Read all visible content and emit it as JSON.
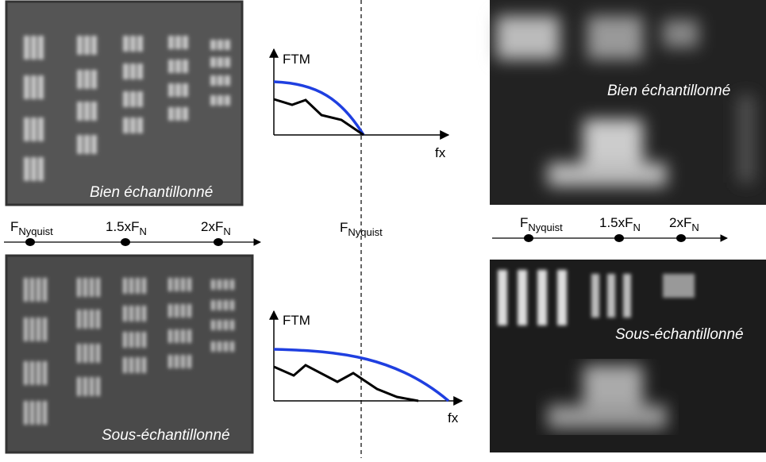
{
  "panels": {
    "top_left": "Bien échantillonné",
    "bottom_left": "Sous-échantillonné",
    "top_right": "Bien échantillonné",
    "bottom_right": "Sous-échantillonné"
  },
  "left_axis": [
    {
      "main": "F",
      "sub": "Nyquist"
    },
    {
      "main": "1.5xF",
      "sub": "N"
    },
    {
      "main": "2xF",
      "sub": "N"
    }
  ],
  "right_axis": [
    {
      "main": "F",
      "sub": "Nyquist"
    },
    {
      "main": "1.5xF",
      "sub": "N"
    },
    {
      "main": "2xF",
      "sub": "N"
    }
  ],
  "center_label": {
    "main": "F",
    "sub": "Nyquist"
  },
  "graphs": [
    {
      "y_label": "FTM",
      "x_label": "fx"
    },
    {
      "y_label": "FTM",
      "x_label": "fx"
    }
  ]
}
